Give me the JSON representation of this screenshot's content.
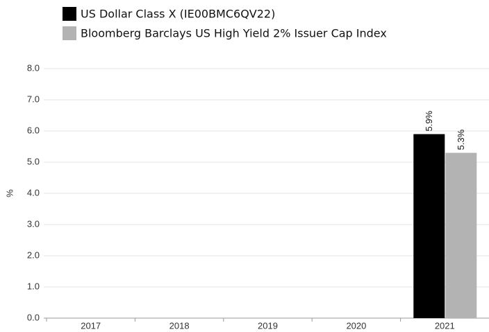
{
  "chart_data": {
    "type": "bar",
    "y_label": "%",
    "categories": [
      "2017",
      "2018",
      "2019",
      "2020",
      "2021"
    ],
    "series": [
      {
        "name": "US Dollar Class X (IE00BMC6QV22)",
        "color": "#000000",
        "values": [
          null,
          null,
          null,
          null,
          5.9
        ],
        "value_labels": [
          null,
          null,
          null,
          null,
          "5.9%"
        ]
      },
      {
        "name": "Bloomberg Barclays US High Yield 2% Issuer Cap Index",
        "color": "#b3b3b3",
        "values": [
          null,
          null,
          null,
          null,
          5.3
        ],
        "value_labels": [
          null,
          null,
          null,
          null,
          "5.3%"
        ]
      }
    ],
    "ylim": [
      0,
      8
    ],
    "yticks": [
      {
        "value": 0,
        "label": "0.0"
      },
      {
        "value": 1,
        "label": "1.0"
      },
      {
        "value": 2,
        "label": "2.0"
      },
      {
        "value": 3,
        "label": "3.0"
      },
      {
        "value": 4,
        "label": "4.0"
      },
      {
        "value": 5,
        "label": "5.0"
      },
      {
        "value": 6,
        "label": "6.0"
      },
      {
        "value": 7,
        "label": "7.0"
      },
      {
        "value": 8,
        "label": "8.0"
      }
    ],
    "grid": true
  }
}
